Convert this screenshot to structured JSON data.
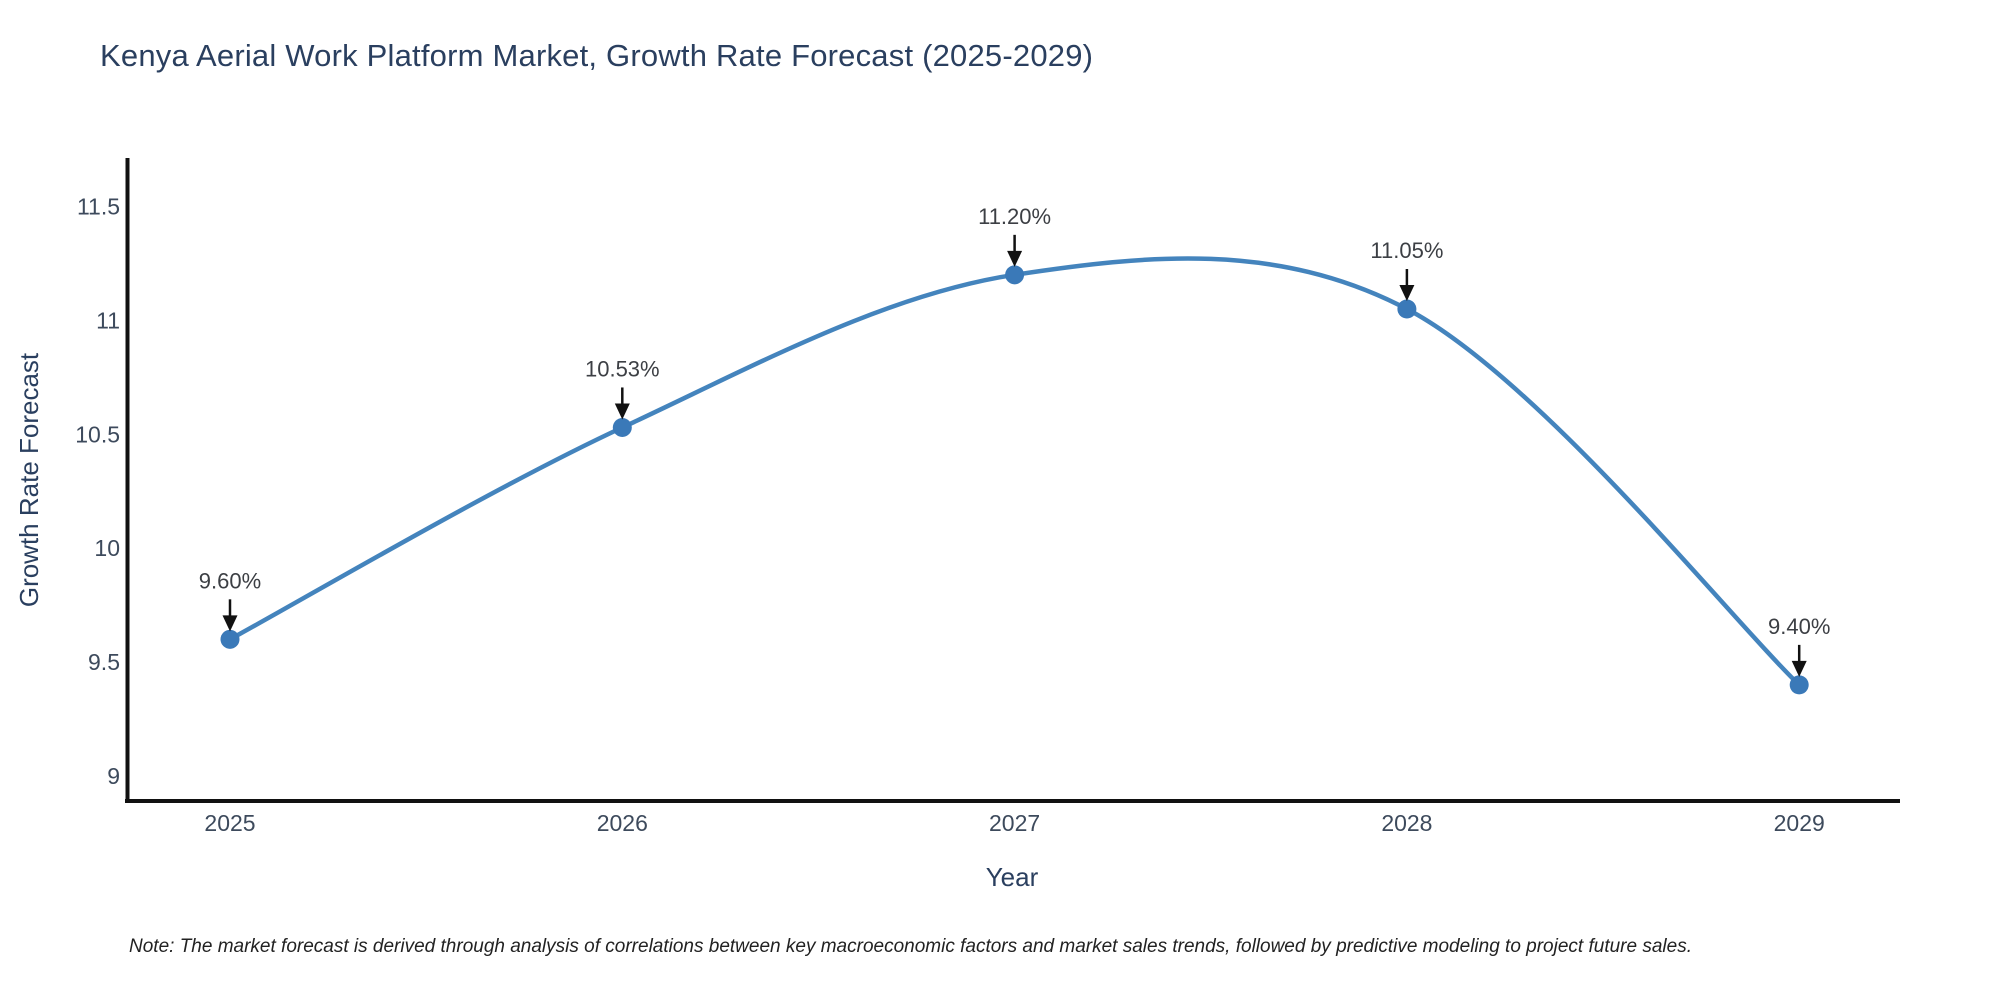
{
  "title": "Kenya Aerial Work Platform Market, Growth Rate Forecast (2025-2029)",
  "note": "Note: The market forecast is derived through analysis of correlations between key macroeconomic factors and market sales trends, followed by predictive modeling to project future sales.",
  "chart_data": {
    "type": "line",
    "line_shape": "spline",
    "title": "Kenya Aerial Work Platform Market, Growth Rate Forecast (2025-2029)",
    "xlabel": "Year",
    "ylabel": "Growth Rate Forecast",
    "x": [
      2025,
      2026,
      2027,
      2028,
      2029
    ],
    "y": [
      9.6,
      10.53,
      11.2,
      11.05,
      9.4
    ],
    "point_labels": [
      "9.60%",
      "10.53%",
      "11.20%",
      "11.05%",
      "9.40%"
    ],
    "xtick_labels": [
      "2025",
      "2026",
      "2027",
      "2028",
      "2029"
    ],
    "ytick_values": [
      9,
      9.5,
      10,
      10.5,
      11,
      11.5
    ],
    "ytick_labels": [
      "9",
      "9.5",
      "10",
      "10.5",
      "11",
      "11.5"
    ],
    "ylim": [
      8.89,
      11.71
    ],
    "grid": false,
    "legend": false,
    "annotation_style": "value label with downward black arrow to each marker",
    "colors": {
      "line": "#4484bd",
      "marker": "#3a79b8",
      "axis": "#111111",
      "title": "#2a3f5f",
      "axis_title": "#2a3f5f",
      "tick": "#3d4a5c",
      "annotation_text": "#3c3f44",
      "arrow": "#111111",
      "background": "#ffffff"
    }
  }
}
